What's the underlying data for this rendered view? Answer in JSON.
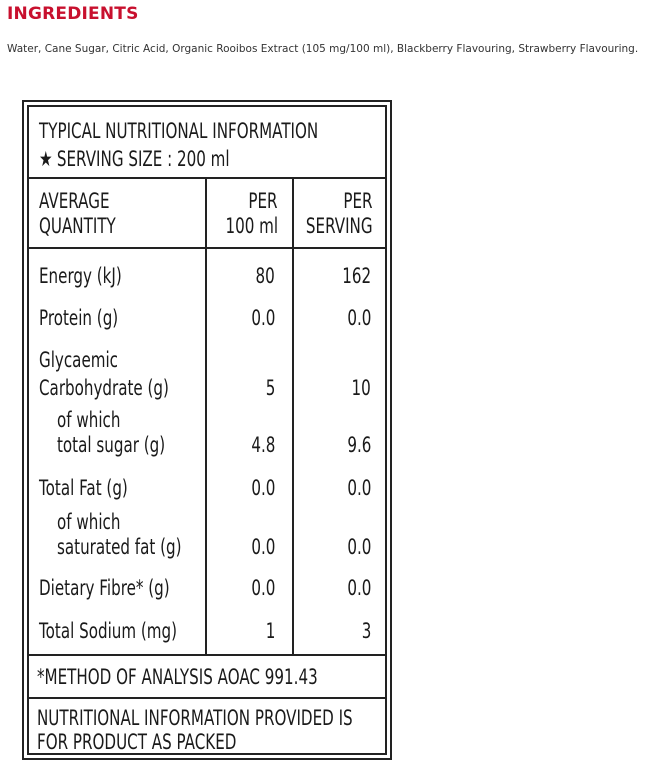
{
  "heading": "INGREDIENTS",
  "ingredients_text": "Water, Cane Sugar, Citric Acid, Organic Rooibos Extract (105 mg/100 ml), Blackberry Flavouring, Strawberry Flavouring.",
  "panel": {
    "title": "TYPICAL NUTRITIONAL INFORMATION",
    "serving_icon": "star-icon",
    "serving_size": "SERVING SIZE : 200 ml",
    "columns": {
      "quantity_line1": "AVERAGE",
      "quantity_line2": "QUANTITY",
      "per100_line1": "PER",
      "per100_line2": "100 ml",
      "perserving_line1": "PER",
      "perserving_line2": "SERVING"
    },
    "rows": [
      {
        "label": "Energy (kJ)",
        "per100": "80",
        "perserving": "162"
      },
      {
        "label": "Protein (g)",
        "per100": "0.0",
        "perserving": "0.0"
      },
      {
        "label_line1": "Glycaemic",
        "label_line2": "Carbohydrate (g)",
        "per100": "5",
        "perserving": "10"
      },
      {
        "label_line1": "of which",
        "label_line2": "total sugar (g)",
        "per100": "4.8",
        "perserving": "9.6"
      },
      {
        "label": "Total Fat (g)",
        "per100": "0.0",
        "perserving": "0.0"
      },
      {
        "label_line1": "of which",
        "label_line2": "saturated fat (g)",
        "per100": "0.0",
        "perserving": "0.0"
      },
      {
        "label": "Dietary Fibre* (g)",
        "per100": "0.0",
        "perserving": "0.0"
      },
      {
        "label": "Total Sodium (mg)",
        "per100": "1",
        "perserving": "3"
      }
    ],
    "method_note": "*METHOD OF ANALYSIS AOAC 991.43",
    "footer_line1": "NUTRITIONAL INFORMATION PROVIDED IS",
    "footer_line2": "FOR PRODUCT AS PACKED"
  }
}
